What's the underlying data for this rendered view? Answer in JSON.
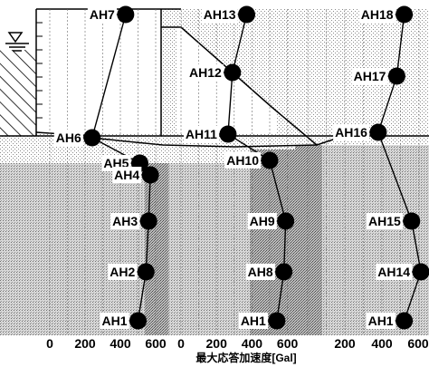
{
  "chart_data": {
    "type": "scatter",
    "xlabel": "最大応答加速度[Gal]",
    "x_ticks": [
      [
        "0",
        "200",
        "400",
        "600"
      ],
      [
        "0",
        "200",
        "400",
        "600"
      ],
      [
        "200",
        "400",
        "600"
      ]
    ],
    "panels": [
      {
        "name": "left",
        "points": [
          {
            "label": "AH7",
            "value": 430
          },
          {
            "label": "AH6",
            "value": 240
          },
          {
            "label": "AH5",
            "value": 510
          },
          {
            "label": "AH4",
            "value": 570
          },
          {
            "label": "AH3",
            "value": 560
          },
          {
            "label": "AH2",
            "value": 545
          },
          {
            "label": "AH1",
            "value": 500
          }
        ]
      },
      {
        "name": "center",
        "points": [
          {
            "label": "AH13",
            "value": 370
          },
          {
            "label": "AH12",
            "value": 290
          },
          {
            "label": "AH11",
            "value": 265
          },
          {
            "label": "AH10",
            "value": 500
          },
          {
            "label": "AH9",
            "value": 590
          },
          {
            "label": "AH8",
            "value": 580
          },
          {
            "label": "AH1",
            "value": 540
          }
        ]
      },
      {
        "name": "right",
        "points": [
          {
            "label": "AH18",
            "value": 520
          },
          {
            "label": "AH17",
            "value": 480
          },
          {
            "label": "AH16",
            "value": 380
          },
          {
            "label": "AH15",
            "value": 560
          },
          {
            "label": "AH14",
            "value": 610
          },
          {
            "label": "AH1",
            "value": 520
          }
        ]
      }
    ]
  }
}
